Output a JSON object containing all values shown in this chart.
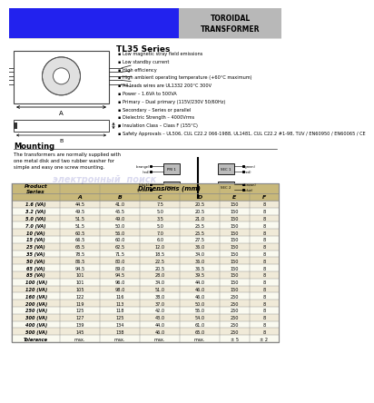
{
  "title": "TOROIDAL\nTRANSFORMER",
  "series_title": "TL35 Series",
  "header_blue": "#2222ee",
  "header_gray": "#b8b8b8",
  "table_header_color": "#c8b87a",
  "table_row_even": "#f0ead8",
  "table_row_odd": "#fafaf0",
  "features": [
    "Low magnetic stray field emissions",
    "Low standby current",
    "High efficiency",
    "High ambient operating temperature (+60°C maximum)",
    "All leads wires are UL1332 200°C 300V",
    "Power – 1.6VA to 500VA",
    "Primary – Dual primary (115V/230V 50/60Hz)",
    "Secondary – Series or parallel",
    "Dielectric Strength – 4000Vrms",
    "Insulation Class – Class F (155°C)",
    "Safety Approvals – UL506, CUL C22.2 066-1988, UL1481, CUL C22.2 #1-98, TUV / EN60950 / EN60065 / CE"
  ],
  "mounting_text": "The transformers are normally supplied with\none metal disk and two rubber washer for\nsimple and easy one screw mounting.",
  "table_columns": [
    "Product\nSeries",
    "A",
    "B",
    "C",
    "D",
    "E",
    "F"
  ],
  "table_data": [
    [
      "1.6 (VA)",
      "44.5",
      "41.0",
      "7.5",
      "20.5",
      "150",
      "8"
    ],
    [
      "3.2 (VA)",
      "49.5",
      "45.5",
      "5.0",
      "20.5",
      "150",
      "8"
    ],
    [
      "5.0 (VA)",
      "51.5",
      "49.0",
      "3.5",
      "21.0",
      "150",
      "8"
    ],
    [
      "7.0 (VA)",
      "51.5",
      "50.0",
      "5.0",
      "25.5",
      "150",
      "8"
    ],
    [
      "10 (VA)",
      "60.5",
      "56.0",
      "7.0",
      "25.5",
      "150",
      "8"
    ],
    [
      "15 (VA)",
      "66.5",
      "60.0",
      "6.0",
      "27.5",
      "150",
      "8"
    ],
    [
      "25 (VA)",
      "65.5",
      "62.5",
      "12.0",
      "36.0",
      "150",
      "8"
    ],
    [
      "35 (VA)",
      "78.5",
      "71.5",
      "18.5",
      "34.0",
      "150",
      "8"
    ],
    [
      "50 (VA)",
      "86.5",
      "80.0",
      "22.5",
      "36.0",
      "150",
      "8"
    ],
    [
      "65 (VA)",
      "94.5",
      "89.0",
      "20.5",
      "36.5",
      "150",
      "8"
    ],
    [
      "85 (VA)",
      "101",
      "94.5",
      "28.0",
      "39.5",
      "150",
      "8"
    ],
    [
      "100 (VA)",
      "101",
      "96.0",
      "34.0",
      "44.0",
      "150",
      "8"
    ],
    [
      "120 (VA)",
      "105",
      "98.0",
      "51.0",
      "46.0",
      "150",
      "8"
    ],
    [
      "160 (VA)",
      "122",
      "116",
      "38.0",
      "46.0",
      "250",
      "8"
    ],
    [
      "200 (VA)",
      "119",
      "113",
      "37.0",
      "50.0",
      "250",
      "8"
    ],
    [
      "250 (VA)",
      "125",
      "118",
      "42.0",
      "55.0",
      "250",
      "8"
    ],
    [
      "300 (VA)",
      "127",
      "125",
      "43.0",
      "54.0",
      "250",
      "8"
    ],
    [
      "400 (VA)",
      "139",
      "134",
      "44.0",
      "61.0",
      "250",
      "8"
    ],
    [
      "500 (VA)",
      "145",
      "138",
      "46.0",
      "65.0",
      "250",
      "8"
    ],
    [
      "Tolerance",
      "max.",
      "max.",
      "max.",
      "max.",
      "± 5",
      "± 2"
    ]
  ]
}
